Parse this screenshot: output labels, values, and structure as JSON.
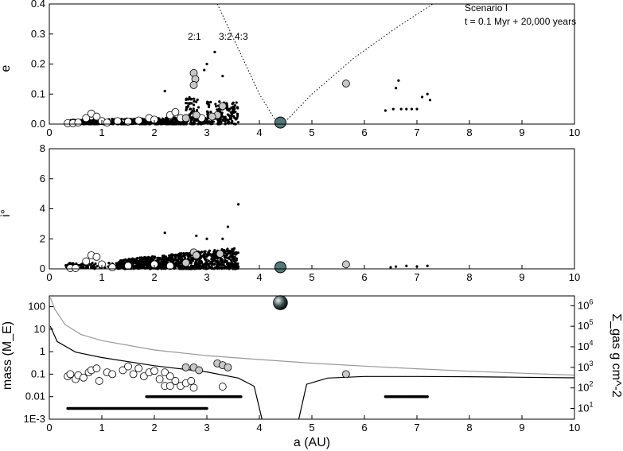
{
  "annotation": {
    "scenario": "Scenario I",
    "time": "t = 0.1 Myr + 20,000 years"
  },
  "resonances": [
    {
      "label": "2:1",
      "a": 2.8
    },
    {
      "label": "3:2",
      "a": 3.45
    },
    {
      "label": "4:3",
      "a": 3.8
    }
  ],
  "chart_data": [
    {
      "type": "scatter",
      "panel": "eccentricity",
      "xlabel": "",
      "ylabel": "e",
      "xlim": [
        0,
        10
      ],
      "ylim": [
        0,
        0.4
      ],
      "xticks": [
        "0",
        "1",
        "2",
        "3",
        "4",
        "5",
        "6",
        "7",
        "8",
        "9",
        "10"
      ],
      "yticks": [
        "0.0",
        "0.1",
        "0.2",
        "0.3",
        "0.4"
      ],
      "giant": {
        "a": 4.4,
        "e": 0.005
      },
      "embryos_grey": [
        [
          2.75,
          0.17
        ],
        [
          2.78,
          0.15
        ],
        [
          2.75,
          0.13
        ],
        [
          2.6,
          0.02
        ],
        [
          2.8,
          0.03
        ],
        [
          3.3,
          0.06
        ],
        [
          3.2,
          0.03
        ],
        [
          3.1,
          0.025
        ],
        [
          5.65,
          0.135
        ]
      ],
      "embryos_white": [
        [
          0.35,
          0.003
        ],
        [
          0.45,
          0.003
        ],
        [
          0.55,
          0.005
        ],
        [
          0.7,
          0.02
        ],
        [
          0.8,
          0.035
        ],
        [
          0.9,
          0.025
        ],
        [
          1.0,
          0.01
        ],
        [
          1.1,
          0.005
        ],
        [
          1.3,
          0.01
        ],
        [
          1.5,
          0.008
        ],
        [
          1.7,
          0.012
        ],
        [
          1.9,
          0.02
        ],
        [
          2.0,
          0.015
        ],
        [
          2.3,
          0.03
        ],
        [
          2.4,
          0.04
        ],
        [
          2.5,
          0.02
        ],
        [
          2.9,
          0.02
        ]
      ],
      "planetesimals": [
        [
          6.4,
          0.045
        ],
        [
          6.55,
          0.05
        ],
        [
          6.65,
          0.145
        ],
        [
          6.7,
          0.05
        ],
        [
          6.8,
          0.05
        ],
        [
          6.9,
          0.05
        ],
        [
          7.1,
          0.09
        ],
        [
          7.2,
          0.1
        ],
        [
          7.25,
          0.08
        ],
        [
          7.0,
          0.05
        ],
        [
          6.6,
          0.12
        ],
        [
          2.2,
          0.11
        ],
        [
          2.6,
          0.07
        ],
        [
          3.15,
          0.24
        ],
        [
          3.0,
          0.2
        ],
        [
          2.95,
          0.18
        ],
        [
          3.3,
          0.16
        ]
      ],
      "planetesimal_cloud": {
        "x_range": [
          0.3,
          3.6
        ],
        "note": "dense swarm"
      },
      "curves": [
        {
          "name": "",
          "style": "dotted",
          "points": [
            [
              3.2,
              0.4
            ],
            [
              3.6,
              0.25
            ],
            [
              4.0,
              0.1
            ],
            [
              4.35,
              0.0
            ]
          ]
        },
        {
          "name": "",
          "style": "dotted",
          "points": [
            [
              4.45,
              0.0
            ],
            [
              5.0,
              0.1
            ],
            [
              5.8,
              0.22
            ],
            [
              6.6,
              0.32
            ],
            [
              7.3,
              0.4
            ]
          ]
        }
      ]
    },
    {
      "type": "scatter",
      "panel": "inclination",
      "xlabel": "",
      "ylabel": "i°",
      "xlim": [
        0,
        10
      ],
      "ylim": [
        0,
        8
      ],
      "xticks": [
        "0",
        "1",
        "2",
        "3",
        "4",
        "5",
        "6",
        "7",
        "8",
        "9",
        "10"
      ],
      "yticks": [
        "0",
        "2",
        "4",
        "6",
        "8"
      ],
      "giant": {
        "a": 4.4,
        "i": 0.0
      },
      "embryos_grey": [
        [
          2.75,
          1.1
        ],
        [
          2.8,
          0.9
        ],
        [
          3.25,
          1.0
        ],
        [
          2.6,
          0.4
        ],
        [
          5.65,
          0.3
        ]
      ],
      "embryos_white": [
        [
          0.4,
          0.05
        ],
        [
          0.5,
          0.05
        ],
        [
          0.7,
          0.5
        ],
        [
          0.8,
          0.9
        ],
        [
          0.9,
          0.8
        ],
        [
          1.0,
          0.3
        ],
        [
          1.2,
          0.1
        ],
        [
          1.5,
          0.2
        ],
        [
          2.0,
          0.3
        ],
        [
          2.3,
          0.2
        ]
      ],
      "planetesimals": [
        [
          3.6,
          4.3
        ],
        [
          2.2,
          2.4
        ],
        [
          2.8,
          2.2
        ],
        [
          3.0,
          2.0
        ],
        [
          3.4,
          2.8
        ],
        [
          3.3,
          2.0
        ],
        [
          6.6,
          0.15
        ],
        [
          6.8,
          0.2
        ],
        [
          7.0,
          0.15
        ],
        [
          7.2,
          0.2
        ],
        [
          6.5,
          0.1
        ]
      ],
      "planetesimal_cloud": {
        "x_range": [
          0.3,
          3.6
        ],
        "note": "dense swarm"
      }
    },
    {
      "type": "scatter",
      "panel": "mass",
      "xlabel": "a (AU)",
      "ylabel": "mass (M_E)",
      "ylabel2": "Σ_gas g cm^-2",
      "xlim": [
        0,
        10
      ],
      "ylim_log": [
        0.001,
        300
      ],
      "y2lim_log": [
        3,
        3000000
      ],
      "xticks": [
        "0",
        "1",
        "2",
        "3",
        "4",
        "5",
        "6",
        "7",
        "8",
        "9",
        "10"
      ],
      "yticks": [
        "1E-3",
        "0.01",
        "0.1",
        "1",
        "10",
        "100"
      ],
      "y2ticks": [
        "10^1",
        "10^2",
        "10^3",
        "10^4",
        "10^5",
        "10^6"
      ],
      "giant": {
        "a": 4.4,
        "mass": 150
      },
      "embryos_grey": [
        [
          2.6,
          0.2
        ],
        [
          2.75,
          0.2
        ],
        [
          2.85,
          0.15
        ],
        [
          3.2,
          0.3
        ],
        [
          3.3,
          0.25
        ],
        [
          3.4,
          0.2
        ],
        [
          5.65,
          0.1
        ]
      ],
      "embryos_white": [
        [
          0.35,
          0.08
        ],
        [
          0.4,
          0.1
        ],
        [
          0.5,
          0.06
        ],
        [
          0.55,
          0.09
        ],
        [
          0.65,
          0.07
        ],
        [
          0.75,
          0.12
        ],
        [
          0.8,
          0.15
        ],
        [
          0.9,
          0.18
        ],
        [
          0.95,
          0.05
        ],
        [
          1.1,
          0.12
        ],
        [
          1.2,
          0.1
        ],
        [
          1.4,
          0.15
        ],
        [
          1.5,
          0.22
        ],
        [
          1.6,
          0.1
        ],
        [
          1.7,
          0.18
        ],
        [
          1.8,
          0.08
        ],
        [
          1.9,
          0.12
        ],
        [
          2.0,
          0.14
        ],
        [
          2.1,
          0.06
        ],
        [
          2.2,
          0.12
        ],
        [
          2.3,
          0.08
        ],
        [
          2.4,
          0.05
        ],
        [
          2.5,
          0.03
        ],
        [
          2.6,
          0.04
        ],
        [
          2.7,
          0.05
        ],
        [
          2.75,
          0.025
        ],
        [
          2.2,
          0.03
        ],
        [
          2.3,
          0.03
        ],
        [
          3.3,
          0.028
        ]
      ],
      "planetesimal_bands": [
        {
          "mass": 0.003,
          "x_range": [
            0.35,
            3.0
          ]
        },
        {
          "mass": 0.01,
          "x_range": [
            1.85,
            3.65
          ]
        },
        {
          "mass": 0.01,
          "x_range": [
            6.4,
            7.2
          ]
        }
      ],
      "curves": [
        {
          "name": "",
          "color": "#999999",
          "axis": "y2",
          "points": [
            [
              0.02,
              2500000
            ],
            [
              0.1,
              700000
            ],
            [
              0.3,
              120000
            ],
            [
              0.6,
              40000
            ],
            [
              1,
              20000
            ],
            [
              2,
              7000
            ],
            [
              3,
              3700
            ],
            [
              4,
              2400
            ],
            [
              5,
              1600
            ],
            [
              6,
              1150
            ],
            [
              7,
              850
            ],
            [
              8,
              650
            ],
            [
              9,
              520
            ],
            [
              10,
              420
            ]
          ]
        },
        {
          "name": "",
          "color": "#000000",
          "axis": "y2",
          "points": [
            [
              0.02,
              100000
            ],
            [
              0.15,
              18000
            ],
            [
              0.5,
              5500
            ],
            [
              1,
              3000
            ],
            [
              2,
              1200
            ],
            [
              3,
              600
            ],
            [
              3.6,
              300
            ],
            [
              3.9,
              120
            ],
            [
              4.05,
              3
            ]
          ]
        },
        {
          "name": "",
          "color": "#000000",
          "axis": "y2",
          "points": [
            [
              4.75,
              3
            ],
            [
              4.9,
              150
            ],
            [
              5.3,
              300
            ],
            [
              6,
              360
            ],
            [
              7,
              360
            ],
            [
              8,
              350
            ],
            [
              9,
              330
            ],
            [
              10,
              310
            ]
          ]
        }
      ]
    }
  ]
}
